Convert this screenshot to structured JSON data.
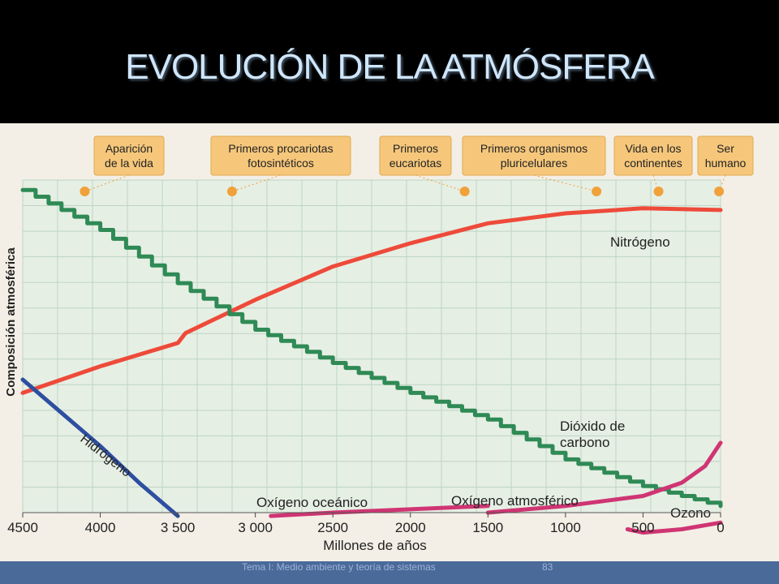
{
  "slide": {
    "title": "EVOLUCIÓN DE LA ATMÓSFERA",
    "footer": "Tema I: Medio ambiente y teoría de sistemas",
    "page": "83"
  },
  "colors": {
    "nitrogen": "#ee4a3a",
    "co2": "#2f8a55",
    "hydrogen": "#2e4fa0",
    "oxygen": "#cf3573",
    "event_box": "#f6c77b",
    "grid": "#bcd5c4"
  },
  "chart_data": {
    "type": "line",
    "xlabel": "Millones de años",
    "ylabel": "Composición atmosférica",
    "xlim": [
      4500,
      0
    ],
    "x_ticks": [
      {
        "v": 4500,
        "label": "4500"
      },
      {
        "v": 4000,
        "label": "4000"
      },
      {
        "v": 3500,
        "label": "3 500"
      },
      {
        "v": 3000,
        "label": "3 000"
      },
      {
        "v": 2500,
        "label": "2500"
      },
      {
        "v": 2000,
        "label": "2000"
      },
      {
        "v": 1500,
        "label": "1500"
      },
      {
        "v": 1000,
        "label": "1000"
      },
      {
        "v": 500,
        "label": "500"
      },
      {
        "v": 0,
        "label": "0"
      }
    ],
    "ylim": [
      0,
      100
    ],
    "grid": true,
    "events": [
      {
        "label": [
          "Aparición",
          "de la vida"
        ],
        "time": 4100
      },
      {
        "label": [
          "Primeros procariotas",
          "fotosintéticos"
        ],
        "time": 3150
      },
      {
        "label": [
          "Primeros",
          "eucariotas"
        ],
        "time": 1650
      },
      {
        "label": [
          "Primeros organismos",
          "pluricelulares"
        ],
        "time": 800
      },
      {
        "label": [
          "Vida en los",
          "continentes"
        ],
        "time": 400
      },
      {
        "label": [
          "Ser",
          "humano"
        ],
        "time": 10
      }
    ],
    "series": [
      {
        "name": "Nitrógeno",
        "x": [
          4500,
          4000,
          3500,
          3450,
          3000,
          2500,
          2000,
          1500,
          1000,
          500,
          0
        ],
        "y": [
          36,
          44,
          51,
          54,
          64,
          74,
          81,
          87,
          90,
          91.5,
          91
        ]
      },
      {
        "name": [
          "Dióxido de",
          "carbono"
        ],
        "shape": "stepped",
        "x": [
          4500,
          4000,
          3500,
          3000,
          2500,
          2000,
          1500,
          1000,
          500,
          0
        ],
        "y": [
          97,
          85,
          69,
          55,
          45,
          36,
          28,
          16,
          8,
          2
        ]
      },
      {
        "name": "Hidrógeno",
        "x": [
          4500,
          4250,
          4000,
          3750,
          3500
        ],
        "y": [
          40,
          30,
          20,
          9,
          -1
        ]
      },
      {
        "name": "Oxígeno oceánico",
        "x": [
          2900,
          2500,
          2000,
          1500
        ],
        "y": [
          -1,
          0,
          1,
          2
        ]
      },
      {
        "name": "Oxígeno atmosférico",
        "x": [
          1500,
          1000,
          500,
          250,
          100,
          0
        ],
        "y": [
          0,
          2,
          5,
          9,
          14,
          21
        ]
      },
      {
        "name": "Ozono",
        "x": [
          600,
          500,
          250,
          0
        ],
        "y": [
          -5,
          -6,
          -5,
          -3
        ]
      }
    ]
  }
}
